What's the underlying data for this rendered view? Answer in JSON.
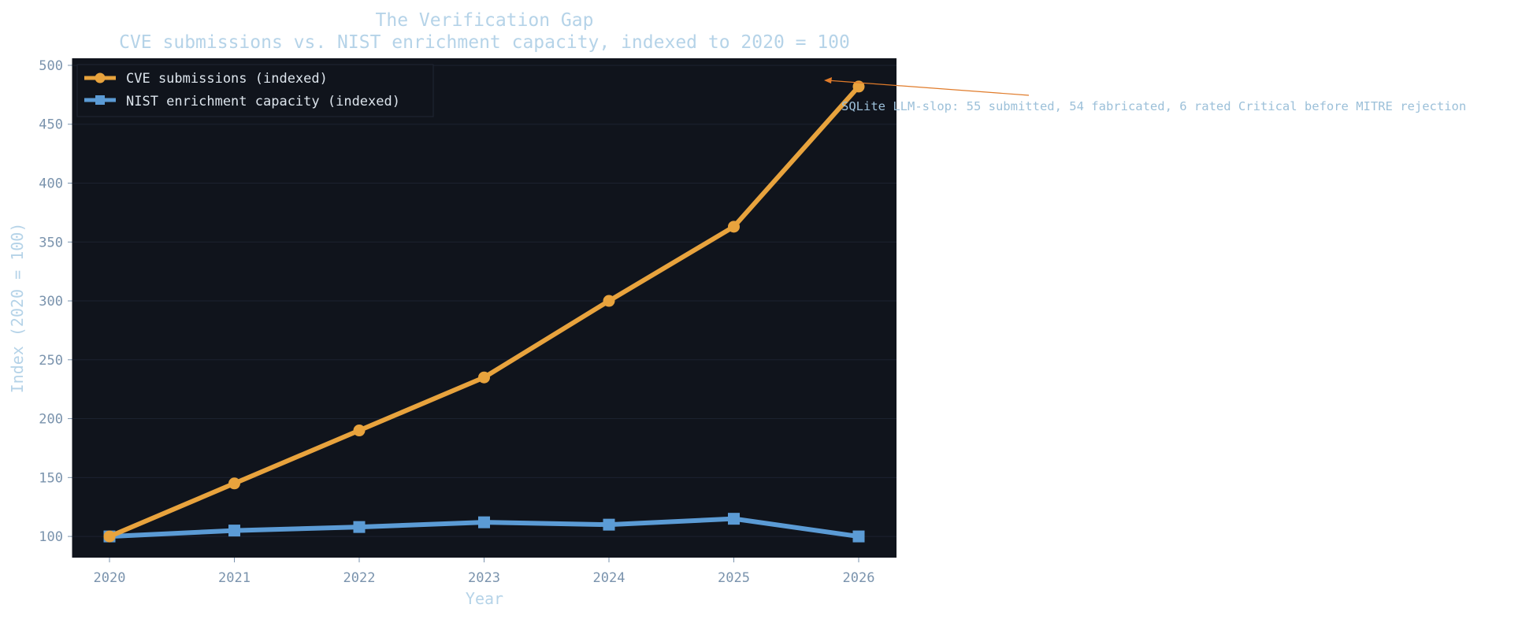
{
  "chart_data": {
    "type": "line",
    "title": "The Verification Gap",
    "subtitle": "CVE submissions vs. NIST enrichment capacity, indexed to 2020 = 100",
    "xlabel": "Year",
    "ylabel": "Index (2020 = 100)",
    "x": [
      "2020",
      "2021",
      "2022",
      "2023",
      "2024",
      "2025",
      "2026"
    ],
    "ylim": [
      82,
      506
    ],
    "yticks": [
      100,
      150,
      200,
      250,
      300,
      350,
      400,
      450,
      500
    ],
    "grid": true,
    "legend_position": "top-left",
    "series": [
      {
        "name": "CVE submissions (indexed)",
        "color": "#e8a33d",
        "marker": "circle",
        "values": [
          100,
          145,
          190,
          235,
          300,
          363,
          482
        ]
      },
      {
        "name": "NIST enrichment capacity (indexed)",
        "color": "#5b9bd5",
        "marker": "square",
        "values": [
          100,
          105,
          108,
          112,
          110,
          115,
          100
        ]
      }
    ],
    "annotations": [
      {
        "text": "SQLite LLM-slop: 55 submitted, 54 fabricated, 6 rated Critical before MITRE rejection",
        "target_x": "2026",
        "target_y": 482,
        "arrow_color": "#e07b2a"
      }
    ]
  },
  "colors": {
    "plot_background": "#10141c",
    "grid": "#1c2230",
    "text": "#b5d3e8",
    "tick": "#7a93ad"
  }
}
